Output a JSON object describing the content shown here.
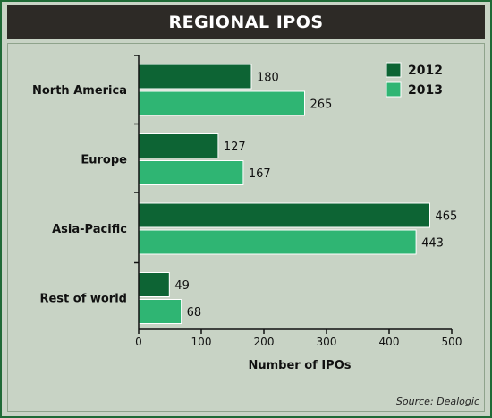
{
  "title": "REGIONAL IPOS",
  "source": "Source: Dealogic",
  "colors": {
    "s2012": "#0d6434",
    "s2013": "#2fb573",
    "background": "#c8d3c5",
    "title_bg": "#2d2a26"
  },
  "chart_data": {
    "type": "bar",
    "orientation": "horizontal",
    "categories": [
      "North America",
      "Europe",
      "Asia-Pacific",
      "Rest of world"
    ],
    "series": [
      {
        "name": "2012",
        "values": [
          180,
          127,
          465,
          49
        ]
      },
      {
        "name": "2013",
        "values": [
          265,
          167,
          443,
          68
        ]
      }
    ],
    "xlabel": "Number of IPOs",
    "ylabel": "",
    "xlim": [
      0,
      500
    ],
    "xticks": [
      0,
      100,
      200,
      300,
      400,
      500
    ],
    "legend": "top-right",
    "grid": false
  }
}
